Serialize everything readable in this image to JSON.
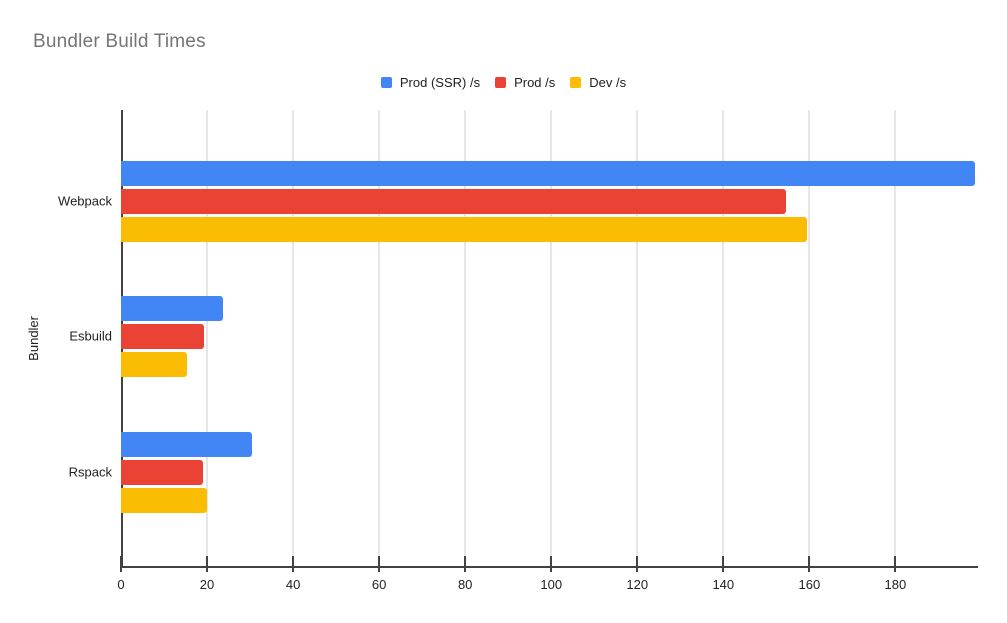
{
  "chart_data": {
    "type": "bar",
    "orientation": "horizontal",
    "title": "Bundler Build Times",
    "xlabel": "",
    "ylabel": "Bundler",
    "categories": [
      "Webpack",
      "Esbuild",
      "Rspack"
    ],
    "series": [
      {
        "name": "Prod (SSR) /s",
        "color": "#4285F4",
        "values": [
          198.6,
          23.6,
          30.5
        ]
      },
      {
        "name": "Prod /s",
        "color": "#EA4335",
        "values": [
          154.5,
          19.4,
          19.1
        ]
      },
      {
        "name": "Dev /s",
        "color": "#FBBC04",
        "values": [
          159.5,
          15.3,
          20.0
        ]
      }
    ],
    "xlim": [
      0,
      199.2
    ],
    "xticks": [
      0,
      20,
      40,
      60,
      80,
      100,
      120,
      140,
      160,
      180
    ],
    "grid": true,
    "legend_position": "top-center"
  },
  "styles": {
    "title_color": "#757575",
    "axis_color": "#424242",
    "gridline_color": "#cccccc",
    "label_color": "#222222",
    "background": "#ffffff"
  }
}
